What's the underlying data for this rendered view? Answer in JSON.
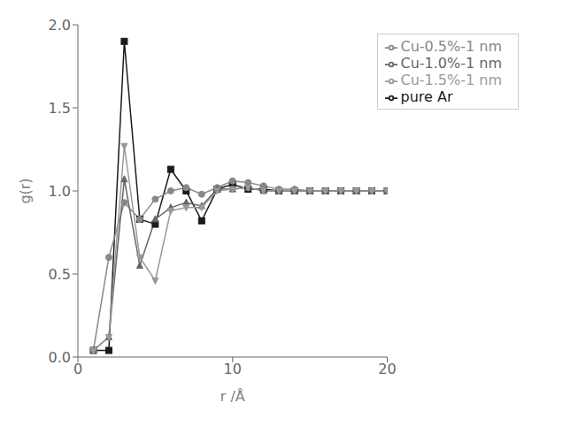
{
  "chart_data": {
    "type": "line",
    "xlabel": "r /Å",
    "ylabel": "g(r)",
    "x": [
      1.0,
      2.0,
      3.0,
      4.0,
      5.0,
      6.0,
      7.0,
      8.0,
      9.0,
      10.0,
      11.0,
      12.0,
      13.0,
      14.0,
      15.0,
      16.0,
      17.0,
      18.0,
      19.0,
      20.0
    ],
    "xlim": [
      0,
      20
    ],
    "ylim": [
      0,
      2.0
    ],
    "xticks": [
      0,
      10,
      20
    ],
    "yticks": [
      {
        "value": 0,
        "label": "0.0"
      },
      0.5,
      {
        "value": 1.0,
        "label": "1.0"
      },
      1.5,
      {
        "value": 2.0,
        "label": "2.0"
      }
    ],
    "grid": false,
    "legend": "upper right",
    "series": [
      {
        "name": "pure Ar",
        "color": "#1a1a1a",
        "marker": "square",
        "values": [
          0.04,
          0.04,
          1.9,
          0.83,
          0.8,
          1.13,
          1.0,
          0.82,
          1.01,
          1.04,
          1.01,
          1.01,
          1.0,
          1.0,
          1.0,
          1.0,
          1.0,
          1.0,
          1.0,
          1.0
        ]
      },
      {
        "name": "Cu-0.5%-1 nm",
        "color": "#888888",
        "marker": "circle",
        "values": [
          0.04,
          0.6,
          0.93,
          0.83,
          0.95,
          1.0,
          1.02,
          0.98,
          1.02,
          1.06,
          1.05,
          1.03,
          1.01,
          1.01,
          1.0,
          1.0,
          1.0,
          1.0,
          1.0,
          1.0
        ]
      },
      {
        "name": "Cu-1.0%-1 nm",
        "color": "#666666",
        "marker": "triangle_up",
        "values": [
          0.04,
          0.12,
          1.07,
          0.55,
          0.83,
          0.9,
          0.93,
          0.91,
          1.01,
          1.01,
          1.02,
          1.0,
          1.0,
          1.0,
          1.0,
          1.0,
          1.0,
          1.0,
          1.0,
          1.0
        ]
      },
      {
        "name": "Cu-1.5%-1 nm",
        "color": "#999999",
        "marker": "triangle_down",
        "values": [
          0.04,
          0.12,
          1.27,
          0.6,
          0.46,
          0.88,
          0.9,
          0.9,
          1.0,
          1.01,
          1.02,
          1.0,
          1.0,
          1.0,
          1.0,
          1.0,
          1.0,
          1.0,
          1.0,
          1.0
        ]
      }
    ]
  }
}
